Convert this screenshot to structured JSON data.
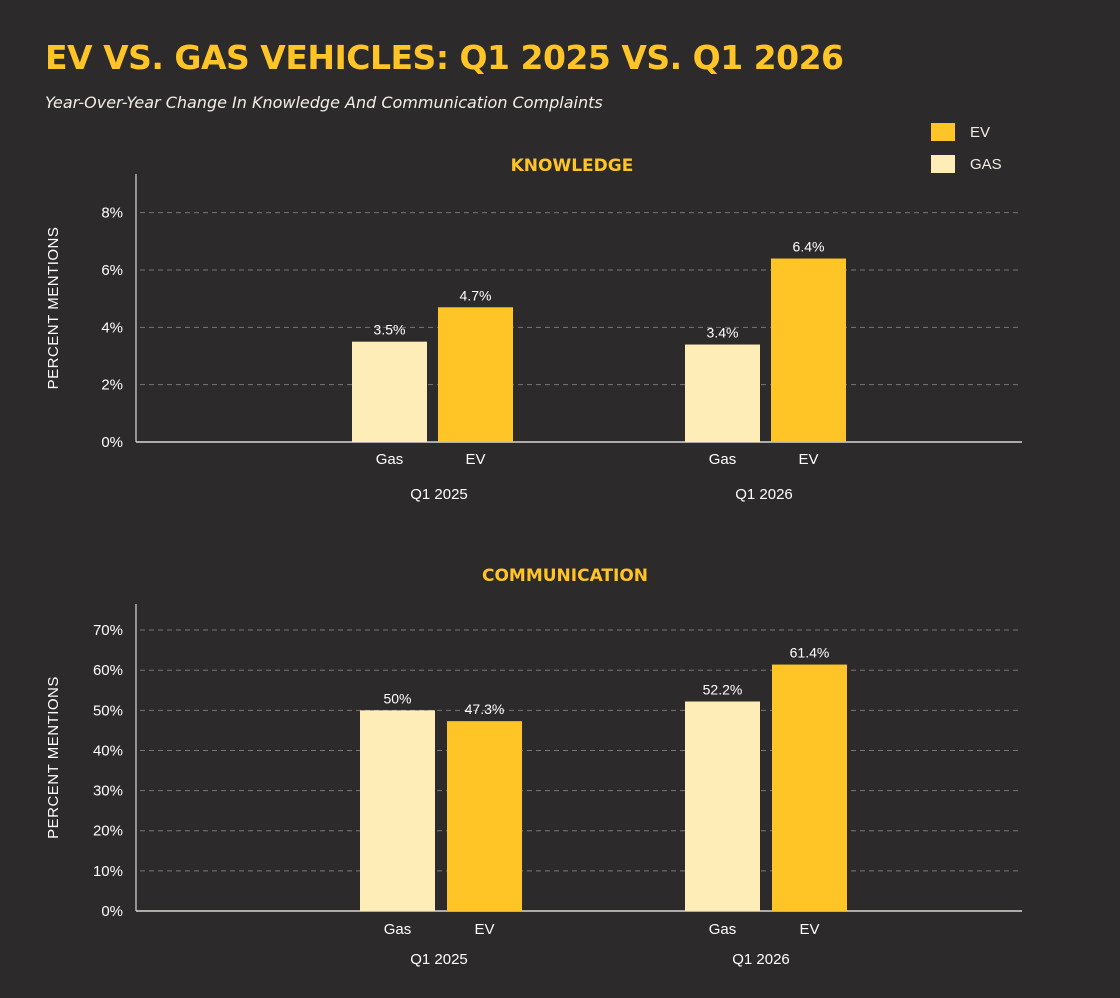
{
  "title": "EV VS. GAS VEHICLES: Q1 2025 VS. Q1 2026",
  "subtitle": "Year-Over-Year Change In Knowledge And Communication Complaints",
  "legend": [
    {
      "label": "EV",
      "color": "#ffc425"
    },
    {
      "label": "GAS",
      "color": "#ffedb8"
    }
  ],
  "colors": {
    "EV": "#ffc425",
    "Gas": "#ffedb8"
  },
  "chart_data": [
    {
      "type": "bar",
      "title": "KNOWLEDGE",
      "ylabel": "PERCENT MENTIONS",
      "groups": [
        "Q1 2025",
        "Q1 2026"
      ],
      "categories": [
        "Gas",
        "EV"
      ],
      "series": [
        {
          "name": "Gas",
          "values": [
            3.5,
            3.4
          ],
          "labels": [
            "3.5%",
            "3.4%"
          ]
        },
        {
          "name": "EV",
          "values": [
            4.7,
            6.4
          ],
          "labels": [
            "4.7%",
            "6.4%"
          ]
        }
      ],
      "yticks": [
        "0%",
        "2%",
        "4%",
        "6%",
        "8%"
      ],
      "ytick_values": [
        0,
        2,
        4,
        6,
        8
      ],
      "ylim": [
        0,
        9
      ],
      "grid": true
    },
    {
      "type": "bar",
      "title": "COMMUNICATION",
      "ylabel": "PERCENT MENTIONS",
      "groups": [
        "Q1 2025",
        "Q1 2026"
      ],
      "categories": [
        "Gas",
        "EV"
      ],
      "series": [
        {
          "name": "Gas",
          "values": [
            50,
            52.2
          ],
          "labels": [
            "50%",
            "52.2%"
          ]
        },
        {
          "name": "EV",
          "values": [
            47.3,
            61.4
          ],
          "labels": [
            "47.3%",
            "61.4%"
          ]
        }
      ],
      "yticks": [
        "0%",
        "10%",
        "20%",
        "30%",
        "40%",
        "50%",
        "60%",
        "70%"
      ],
      "ytick_values": [
        0,
        10,
        20,
        30,
        40,
        50,
        60,
        70
      ],
      "ylim": [
        0,
        74
      ],
      "grid": true
    }
  ]
}
